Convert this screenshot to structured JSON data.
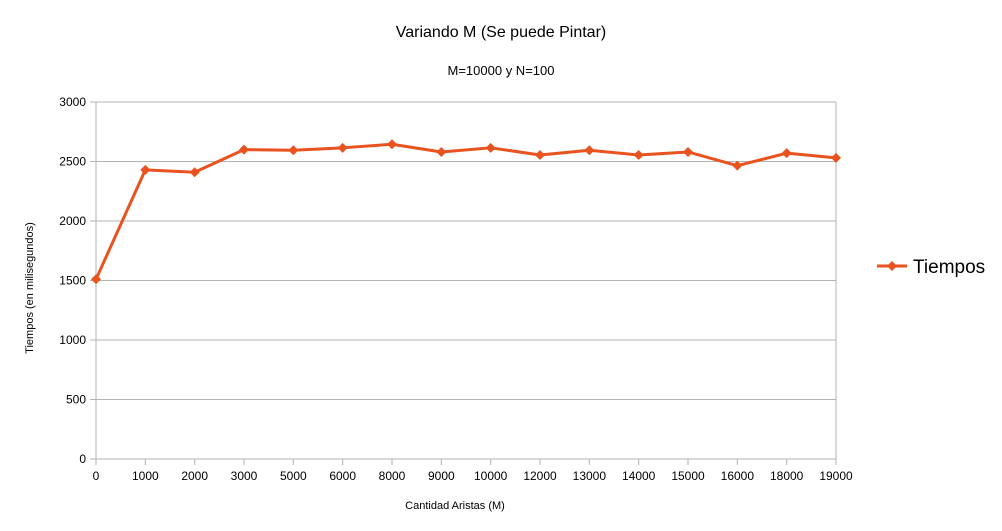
{
  "chart_data": {
    "type": "line",
    "title": "Variando M (Se puede Pintar)",
    "subtitle": "M=10000 y N=100",
    "xlabel": "Cantidad Aristas (M)",
    "ylabel": "Tiempos (en milisegundos)",
    "categories": [
      "0",
      "1000",
      "2000",
      "3000",
      "5000",
      "6000",
      "8000",
      "9000",
      "10000",
      "12000",
      "13000",
      "14000",
      "15000",
      "16000",
      "18000",
      "19000"
    ],
    "series": [
      {
        "name": "Tiempos",
        "values": [
          1510,
          2430,
          2410,
          2600,
          2595,
          2615,
          2645,
          2580,
          2615,
          2555,
          2595,
          2555,
          2580,
          2465,
          2570,
          2530
        ]
      }
    ],
    "ylim": [
      0,
      3000
    ],
    "yticks": [
      0,
      500,
      1000,
      1500,
      2000,
      2500,
      3000
    ],
    "grid": true,
    "legend_position": "right",
    "colors": {
      "series": "#e8531f",
      "grid": "#b3b3b3"
    }
  }
}
